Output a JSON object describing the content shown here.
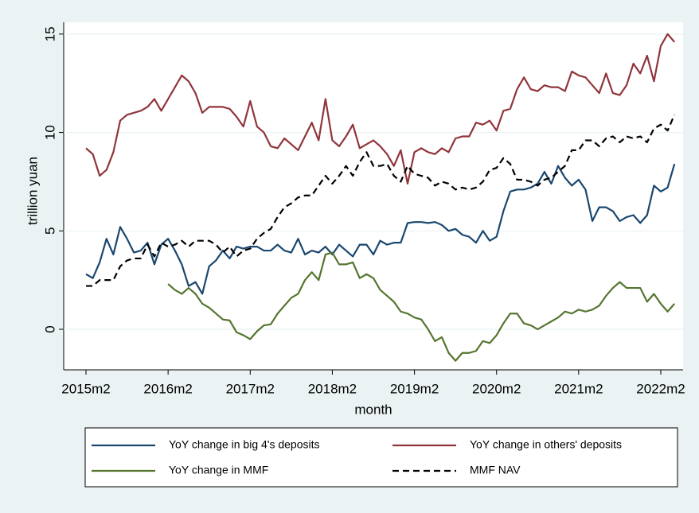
{
  "chart_data": {
    "type": "line",
    "x_label": "month",
    "y_label": "trillion yuan",
    "categories": [
      "2015m2",
      null,
      null,
      null,
      null,
      null,
      null,
      null,
      null,
      null,
      null,
      null,
      "2016m2",
      null,
      null,
      null,
      null,
      null,
      null,
      null,
      null,
      null,
      null,
      null,
      "2017m2",
      null,
      null,
      null,
      null,
      null,
      null,
      null,
      null,
      null,
      null,
      null,
      "2018m2",
      null,
      null,
      null,
      null,
      null,
      null,
      null,
      null,
      null,
      null,
      null,
      "2019m2",
      null,
      null,
      null,
      null,
      null,
      null,
      null,
      null,
      null,
      null,
      null,
      "2020m2",
      null,
      null,
      null,
      null,
      null,
      null,
      null,
      null,
      null,
      null,
      null,
      "2021m2",
      null,
      null,
      null,
      null,
      null,
      null,
      null,
      null,
      null,
      null,
      null,
      "2022m2",
      null,
      null
    ],
    "ylim": [
      -2.06,
      15.6
    ],
    "yticks": [
      0,
      5,
      10,
      15
    ],
    "grid": true,
    "series": [
      {
        "name": "YoY change in big 4's deposits",
        "color": "#1a476f",
        "dash": false,
        "values": [
          2.8,
          2.6,
          3.4,
          4.6,
          3.8,
          5.2,
          4.6,
          3.9,
          4.0,
          4.4,
          3.3,
          4.3,
          4.6,
          4.0,
          3.3,
          2.2,
          2.4,
          1.8,
          3.2,
          3.5,
          4.0,
          3.6,
          4.2,
          4.1,
          4.2,
          4.2,
          4.0,
          4.0,
          4.3,
          4.0,
          3.9,
          4.6,
          3.8,
          4.0,
          3.9,
          4.2,
          3.8,
          4.3,
          4.0,
          3.7,
          4.3,
          4.3,
          3.8,
          4.5,
          4.3,
          4.4,
          4.4,
          5.4,
          5.45,
          5.45,
          5.4,
          5.45,
          5.3,
          5.0,
          5.1,
          4.8,
          4.7,
          4.4,
          5.0,
          4.5,
          4.7,
          6.0,
          7.0,
          7.1,
          7.1,
          7.2,
          7.4,
          8.0,
          7.4,
          8.3,
          7.7,
          7.3,
          7.6,
          7.1,
          5.5,
          6.2,
          6.2,
          6.0,
          5.5,
          5.7,
          5.8,
          5.4,
          5.8,
          7.3,
          7.0,
          7.2,
          8.4
        ]
      },
      {
        "name": "YoY change in others' deposits",
        "color": "#90353b",
        "dash": false,
        "values": [
          9.2,
          8.9,
          7.8,
          8.1,
          9.0,
          10.6,
          10.9,
          11.0,
          11.1,
          11.3,
          11.7,
          11.1,
          11.7,
          12.3,
          12.9,
          12.6,
          12.0,
          11.0,
          11.3,
          11.3,
          11.3,
          11.2,
          10.8,
          10.3,
          11.6,
          10.3,
          10.0,
          9.3,
          9.2,
          9.7,
          9.4,
          9.1,
          9.8,
          10.5,
          9.6,
          11.7,
          9.6,
          9.3,
          9.8,
          10.4,
          9.2,
          9.4,
          9.6,
          9.3,
          8.9,
          8.3,
          9.1,
          7.4,
          9.0,
          9.2,
          9.0,
          8.9,
          9.2,
          9.0,
          9.7,
          9.8,
          9.8,
          10.5,
          10.4,
          10.6,
          10.1,
          11.1,
          11.2,
          12.2,
          12.8,
          12.2,
          12.1,
          12.4,
          12.3,
          12.3,
          12.1,
          13.1,
          12.9,
          12.8,
          12.4,
          12.0,
          13.0,
          12.0,
          11.9,
          12.4,
          13.5,
          13.0,
          13.9,
          12.6,
          14.4,
          15.0,
          14.6
        ]
      },
      {
        "name": "YoY change in MMF",
        "color": "#55752f",
        "dash": false,
        "values": [
          null,
          null,
          null,
          null,
          null,
          null,
          null,
          null,
          null,
          null,
          null,
          null,
          2.3,
          2.0,
          1.8,
          2.1,
          1.8,
          1.3,
          1.1,
          0.8,
          0.5,
          0.45,
          -0.15,
          -0.3,
          -0.5,
          -0.1,
          0.2,
          0.25,
          0.8,
          1.2,
          1.6,
          1.8,
          2.5,
          2.9,
          2.5,
          3.8,
          3.9,
          3.3,
          3.3,
          3.4,
          2.6,
          2.8,
          2.6,
          2.0,
          1.7,
          1.4,
          0.9,
          0.8,
          0.6,
          0.5,
          0.0,
          -0.6,
          -0.4,
          -1.2,
          -1.6,
          -1.2,
          -1.2,
          -1.1,
          -0.6,
          -0.7,
          -0.3,
          0.3,
          0.8,
          0.8,
          0.3,
          0.2,
          0.0,
          0.2,
          0.4,
          0.6,
          0.9,
          0.8,
          1.0,
          0.9,
          1.0,
          1.2,
          1.7,
          2.1,
          2.4,
          2.1,
          2.1,
          2.1,
          1.4,
          1.8,
          1.3,
          0.9,
          1.3
        ]
      },
      {
        "name": "MMF NAV",
        "color": "#000000",
        "dash": true,
        "values": [
          2.2,
          2.2,
          2.5,
          2.5,
          2.5,
          3.2,
          3.5,
          3.6,
          3.6,
          4.3,
          3.7,
          4.4,
          4.2,
          4.3,
          4.5,
          4.2,
          4.5,
          4.5,
          4.5,
          4.3,
          3.9,
          4.2,
          3.7,
          4.0,
          4.1,
          4.6,
          4.9,
          5.1,
          5.7,
          6.2,
          6.4,
          6.7,
          6.8,
          6.8,
          7.3,
          7.8,
          7.4,
          7.8,
          8.3,
          7.8,
          8.5,
          9.0,
          8.3,
          8.3,
          8.4,
          7.8,
          7.5,
          8.3,
          7.9,
          7.8,
          7.7,
          7.3,
          7.5,
          7.4,
          7.1,
          7.2,
          7.1,
          7.2,
          7.5,
          8.1,
          8.2,
          8.7,
          8.4,
          7.6,
          7.6,
          7.5,
          7.3,
          7.6,
          7.7,
          8.0,
          8.3,
          9.1,
          9.1,
          9.6,
          9.6,
          9.3,
          9.7,
          9.8,
          9.5,
          9.8,
          9.7,
          9.8,
          9.5,
          10.2,
          10.4,
          10.1,
          10.9
        ]
      }
    ]
  }
}
